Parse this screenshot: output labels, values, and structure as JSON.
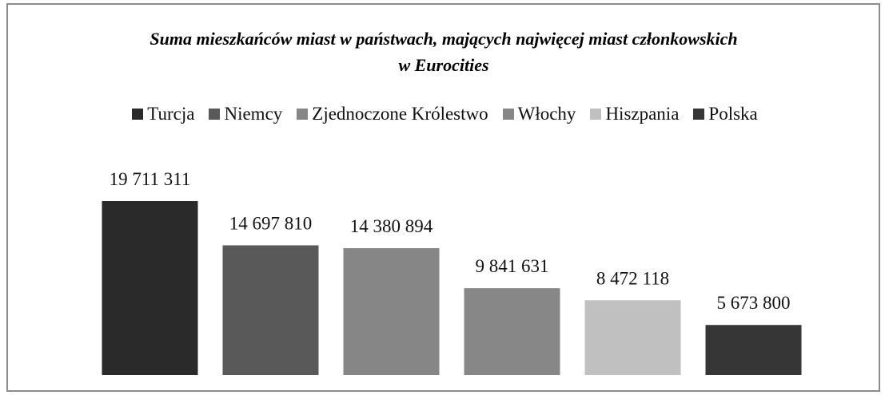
{
  "chart_data": {
    "type": "bar",
    "title": "Suma mieszkańców miast w państwach, mających najwięcej miast członkowskich w Eurocities",
    "series": [
      {
        "name": "Turcja",
        "color": "#2a2a2a",
        "values": [
          19711311
        ],
        "value_labels": [
          "19 711 311"
        ]
      },
      {
        "name": "Niemcy",
        "color": "#595959",
        "values": [
          14697810
        ],
        "value_labels": [
          "14 697 810"
        ]
      },
      {
        "name": "Zjednoczone Królestwo",
        "color": "#868686",
        "values": [
          14380894
        ],
        "value_labels": [
          "14 380 894"
        ]
      },
      {
        "name": "Włochy",
        "color": "#878787",
        "values": [
          9841631
        ],
        "value_labels": [
          "9 841 631"
        ]
      },
      {
        "name": "Hiszpania",
        "color": "#c0c0c0",
        "values": [
          8472118
        ],
        "value_labels": [
          "8 472 118"
        ]
      },
      {
        "name": "Polska",
        "color": "#363636",
        "values": [
          5673800
        ],
        "value_labels": [
          "5 673 800"
        ]
      }
    ],
    "legend": "top"
  }
}
